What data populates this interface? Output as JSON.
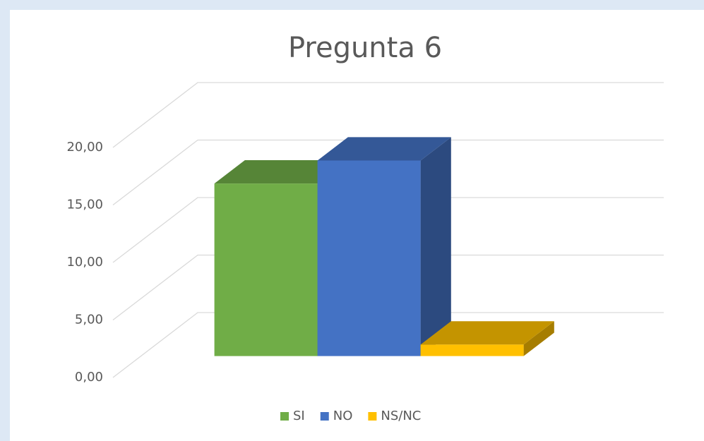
{
  "chart_data": {
    "type": "bar3d",
    "title": "Pregunta 6",
    "categories": [
      "SI",
      "NO",
      "NS/NC"
    ],
    "values": [
      15,
      17,
      1
    ],
    "colors": [
      "#70ad47",
      "#4472c4",
      "#ffc000"
    ],
    "ylim": [
      0,
      20
    ],
    "yticks": [
      {
        "value": 0,
        "label": "0,00"
      },
      {
        "value": 5,
        "label": "5,00"
      },
      {
        "value": 10,
        "label": "10,00"
      },
      {
        "value": 15,
        "label": "15,00"
      },
      {
        "value": 20,
        "label": "20,00"
      }
    ],
    "grid": true,
    "legend": "bottom"
  }
}
